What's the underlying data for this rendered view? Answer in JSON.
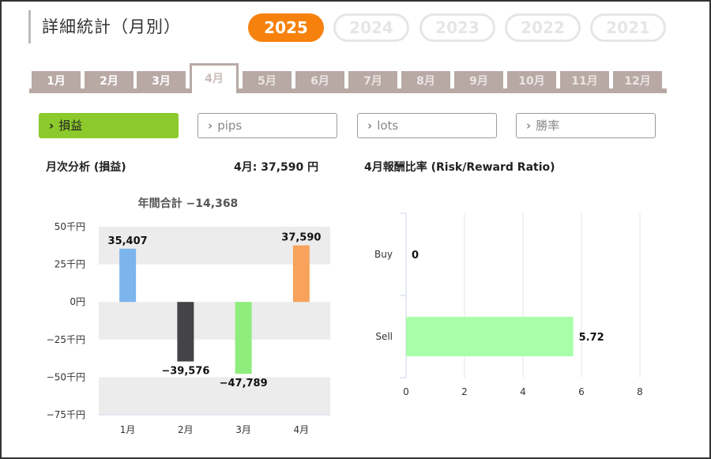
{
  "header": {
    "title": "詳細統計（月別）"
  },
  "years": [
    {
      "label": "2025",
      "active": true
    },
    {
      "label": "2024",
      "active": false
    },
    {
      "label": "2023",
      "active": false
    },
    {
      "label": "2022",
      "active": false
    },
    {
      "label": "2021",
      "active": false
    }
  ],
  "months": [
    {
      "label": "1月",
      "state": "normal"
    },
    {
      "label": "2月",
      "state": "normal"
    },
    {
      "label": "3月",
      "state": "normal"
    },
    {
      "label": "4月",
      "state": "active"
    },
    {
      "label": "5月",
      "state": "dim"
    },
    {
      "label": "6月",
      "state": "dim"
    },
    {
      "label": "7月",
      "state": "dim"
    },
    {
      "label": "8月",
      "state": "dim"
    },
    {
      "label": "9月",
      "state": "dim"
    },
    {
      "label": "10月",
      "state": "dim"
    },
    {
      "label": "11月",
      "state": "dim"
    },
    {
      "label": "12月",
      "state": "dim"
    }
  ],
  "filters": [
    {
      "label": "損益",
      "active": true
    },
    {
      "label": "pips",
      "active": false
    },
    {
      "label": "lots",
      "active": false
    },
    {
      "label": "勝率",
      "active": false
    }
  ],
  "monthly": {
    "section_title": "月次分析 (損益)",
    "month_total": "4月:  37,590 円"
  },
  "ratio": {
    "section_title": "4月報酬比率 (Risk/Reward Ratio)"
  },
  "colors": {
    "accent_year": "#f6820d",
    "filter_active": "#8cc92c",
    "tab": "#b8a9a5"
  },
  "chart_data": [
    {
      "type": "bar",
      "title": "年間合計 −14,368",
      "categories": [
        "1月",
        "2月",
        "3月",
        "4月"
      ],
      "values": [
        35407,
        -39576,
        -47789,
        37590
      ],
      "data_labels": [
        "35,407",
        "−39,576",
        "−47,789",
        "37,590"
      ],
      "bar_colors": [
        "#7cb5ec",
        "#434348",
        "#90ed7d",
        "#f7a35c"
      ],
      "yticks": [
        50000,
        25000,
        0,
        -25000,
        -50000,
        -75000
      ],
      "ytick_labels": [
        "50千円",
        "25千円",
        "0円",
        "−25千円",
        "−50千円",
        "−75千円"
      ],
      "ylim": [
        -75000,
        50000
      ],
      "grid": "alternating bands"
    },
    {
      "type": "bar",
      "orientation": "horizontal",
      "categories": [
        "Buy",
        "Sell"
      ],
      "values": [
        0,
        5.72
      ],
      "data_labels": [
        "0",
        "5.72"
      ],
      "bar_color": "#a9ffa9",
      "xticks": [
        0,
        2,
        4,
        6,
        8
      ],
      "xlim": [
        0,
        8
      ],
      "grid": "vertical lines"
    }
  ]
}
